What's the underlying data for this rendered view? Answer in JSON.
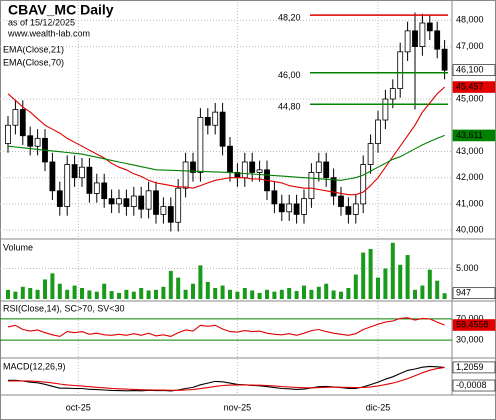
{
  "chart_data": [
    {
      "type": "candlestick",
      "title": "CBAV_MC Daily",
      "subtitle": "as of 15/12/2025",
      "source": "www.wealth-lab.com",
      "open": [
        43.3,
        44.0,
        44.6,
        43.6,
        43.2,
        43.5,
        42.6,
        41.5,
        40.9,
        42.5,
        42.0,
        42.4,
        41.4,
        41.8,
        41.2,
        41.0,
        41.2,
        40.9,
        41.3,
        40.8,
        41.5,
        40.6,
        40.9,
        40.3,
        41.6,
        42.6,
        42.2,
        44.3,
        44.0,
        44.5,
        43.2,
        42.2,
        42.0,
        42.6,
        42.2,
        42.3,
        41.5,
        41.0,
        40.7,
        41.0,
        40.6,
        41.2,
        42.2,
        42.6,
        42.0,
        41.3,
        40.9,
        40.6,
        41.0,
        42.5,
        43.3,
        44.2,
        45.0,
        45.4,
        46.8,
        47.6,
        47.0,
        47.9,
        47.6,
        46.9
      ],
      "high": [
        44.35,
        44.95,
        44.95,
        43.95,
        43.85,
        43.85,
        42.95,
        41.85,
        42.85,
        42.85,
        42.75,
        42.75,
        42.15,
        42.15,
        41.55,
        41.55,
        41.55,
        41.65,
        41.65,
        41.85,
        41.85,
        41.25,
        41.25,
        41.95,
        42.95,
        42.95,
        44.65,
        44.65,
        44.85,
        44.85,
        43.55,
        42.55,
        42.95,
        42.95,
        42.65,
        42.65,
        41.85,
        41.35,
        41.35,
        41.35,
        41.55,
        42.55,
        42.95,
        42.95,
        42.35,
        41.65,
        41.25,
        41.35,
        42.85,
        43.65,
        44.55,
        45.35,
        45.75,
        47.15,
        47.95,
        48.3,
        48.25,
        48.2,
        47.95,
        47.25
      ],
      "low": [
        42.95,
        43.65,
        43.25,
        42.85,
        42.85,
        42.25,
        41.15,
        40.55,
        40.55,
        41.65,
        41.65,
        41.05,
        41.05,
        40.85,
        40.65,
        40.65,
        40.55,
        40.55,
        40.45,
        40.45,
        40.25,
        40.25,
        39.95,
        39.95,
        41.25,
        41.85,
        41.85,
        43.65,
        43.65,
        42.85,
        41.85,
        41.65,
        41.65,
        41.85,
        41.85,
        41.15,
        40.65,
        40.35,
        40.35,
        40.25,
        40.25,
        40.85,
        41.85,
        41.65,
        40.95,
        40.55,
        40.25,
        40.25,
        40.65,
        42.15,
        42.95,
        43.85,
        44.65,
        45.05,
        46.45,
        44.6,
        46.65,
        47.25,
        46.55,
        45.75
      ],
      "close": [
        44.0,
        44.6,
        43.6,
        43.2,
        43.5,
        42.6,
        41.5,
        40.9,
        42.5,
        42.0,
        42.4,
        41.4,
        41.8,
        41.2,
        41.0,
        41.2,
        40.9,
        41.3,
        40.8,
        41.5,
        40.6,
        40.9,
        40.3,
        41.6,
        42.6,
        42.2,
        44.3,
        44.0,
        44.5,
        43.2,
        42.2,
        42.0,
        42.6,
        42.2,
        42.3,
        41.5,
        41.0,
        40.7,
        41.0,
        40.6,
        41.2,
        42.2,
        42.6,
        42.0,
        41.3,
        40.9,
        40.6,
        41.0,
        42.5,
        43.3,
        44.2,
        45.0,
        45.4,
        46.8,
        47.6,
        47.0,
        47.9,
        47.6,
        46.9,
        46.1
      ],
      "series": [
        {
          "name": "EMA(Close,21)",
          "color": "#e00000",
          "values": [
            45.2,
            44.95,
            44.7,
            44.5,
            44.25,
            44.0,
            43.85,
            43.7,
            43.5,
            43.35,
            43.2,
            43.05,
            42.9,
            42.75,
            42.55,
            42.4,
            42.3,
            42.15,
            42.05,
            41.9,
            41.8,
            41.75,
            41.7,
            41.65,
            41.65,
            41.6,
            41.7,
            41.8,
            41.9,
            41.95,
            42.0,
            42.0,
            42.0,
            41.95,
            41.95,
            41.9,
            41.85,
            41.8,
            41.7,
            41.65,
            41.6,
            41.6,
            41.55,
            41.5,
            41.45,
            41.4,
            41.35,
            41.35,
            41.45,
            41.7,
            42.0,
            42.4,
            42.8,
            43.2,
            43.6,
            44.0,
            44.5,
            44.85,
            45.2,
            45.457
          ]
        },
        {
          "name": "EMA(Close,70)",
          "color": "#008000",
          "values": [
            43.2,
            43.17,
            43.14,
            43.11,
            43.08,
            43.05,
            43.02,
            42.99,
            42.96,
            42.93,
            42.9,
            42.84,
            42.78,
            42.72,
            42.66,
            42.6,
            42.54,
            42.48,
            42.42,
            42.36,
            42.3,
            42.29,
            42.28,
            42.27,
            42.26,
            42.25,
            42.24,
            42.23,
            42.22,
            42.21,
            42.2,
            42.18,
            42.16,
            42.14,
            42.12,
            42.1,
            42.08,
            42.06,
            42.04,
            42.02,
            42.0,
            41.98,
            41.96,
            41.94,
            41.92,
            41.9,
            41.95,
            42.0,
            42.1,
            42.25,
            42.4,
            42.55,
            42.7,
            42.8,
            42.95,
            43.1,
            43.25,
            43.38,
            43.5,
            43.611
          ]
        }
      ],
      "levels": [
        {
          "value": 48.2,
          "label": "48,20",
          "color": "#e00000"
        },
        {
          "value": 46.0,
          "label": "46,00",
          "color": "#008000"
        },
        {
          "value": 44.8,
          "label": "44,80",
          "color": "#008000"
        }
      ],
      "ylim": [
        39.7,
        48.7
      ],
      "yticks": [
        {
          "value": 48,
          "label": "48,000"
        },
        {
          "value": 47,
          "label": "47,000"
        },
        {
          "value": 45,
          "label": "45,000"
        },
        {
          "value": 43,
          "label": "43,000"
        },
        {
          "value": 42,
          "label": "42,000"
        },
        {
          "value": 41,
          "label": "41,000"
        },
        {
          "value": 40,
          "label": "40,000"
        }
      ],
      "last_labels": [
        {
          "value": 46.1,
          "label": "46,100",
          "color": "#ffffff"
        },
        {
          "value": 45.457,
          "label": "45,457",
          "color": "#e00000"
        },
        {
          "value": 43.611,
          "label": "43,611",
          "color": "#008000"
        }
      ],
      "x_labels": [
        {
          "index": 9.5,
          "label": "oct-25"
        },
        {
          "index": 31,
          "label": "nov-25"
        },
        {
          "index": 50,
          "label": "dic-25"
        }
      ]
    },
    {
      "type": "bar",
      "title": "Volume",
      "color": "#1a9a1a",
      "values": [
        1500,
        1200,
        2000,
        1800,
        1500,
        3200,
        4200,
        2500,
        1500,
        2200,
        1800,
        1400,
        1200,
        2500,
        1300,
        1000,
        1500,
        1200,
        1800,
        1400,
        1500,
        2000,
        4600,
        3500,
        1500,
        2500,
        5500,
        2800,
        1800,
        2200,
        1500,
        1200,
        1800,
        1400,
        1000,
        1500,
        1200,
        1500,
        1800,
        1300,
        2200,
        1500,
        2000,
        2500,
        1400,
        1200,
        1800,
        4000,
        7600,
        8200,
        3500,
        5000,
        9200,
        5600,
        7200,
        1500,
        2200,
        4800,
        3000,
        947
      ],
      "ylim": [
        0,
        9500
      ],
      "yticks": [
        {
          "value": 5000,
          "label": "5.000"
        }
      ],
      "last_labels": [
        {
          "value": 947,
          "label": "947",
          "color": "#ffffff"
        }
      ]
    },
    {
      "type": "line",
      "title": "RSI(Close,14), SC>70, SV<30",
      "series": [
        {
          "color": "#e00000",
          "values": [
            55,
            58,
            50,
            47,
            49,
            44,
            40,
            37,
            46,
            44,
            46,
            41,
            43,
            40,
            39,
            41,
            39,
            42,
            39,
            43,
            38,
            40,
            37,
            44,
            49,
            47,
            58,
            56,
            58,
            51,
            46,
            45,
            48,
            46,
            47,
            43,
            41,
            40,
            42,
            39,
            43,
            48,
            50,
            46,
            43,
            41,
            39,
            42,
            50,
            55,
            60,
            64,
            66,
            71,
            72,
            68,
            71,
            70,
            64,
            58.4558
          ]
        }
      ],
      "ylim": [
        0,
        100
      ],
      "yticks": [
        {
          "value": 70,
          "label": "70,000"
        },
        {
          "value": 30,
          "label": "30,000"
        }
      ],
      "tick_color": "#008000",
      "last_labels": [
        {
          "value": 58.4558,
          "label": "58,4558",
          "color": "#e00000"
        }
      ]
    },
    {
      "type": "line",
      "title": "MACD(12,26,9)",
      "series": [
        {
          "color": "#000000",
          "values": [
            0.35,
            0.35,
            0.3,
            0.22,
            0.18,
            0.08,
            -0.05,
            -0.18,
            -0.18,
            -0.2,
            -0.2,
            -0.25,
            -0.27,
            -0.3,
            -0.33,
            -0.34,
            -0.35,
            -0.34,
            -0.35,
            -0.32,
            -0.34,
            -0.33,
            -0.36,
            -0.3,
            -0.2,
            -0.13,
            0.05,
            0.16,
            0.27,
            0.25,
            0.16,
            0.07,
            0.05,
            0.01,
            -0.02,
            -0.07,
            -0.14,
            -0.2,
            -0.22,
            -0.26,
            -0.24,
            -0.16,
            -0.08,
            -0.06,
            -0.09,
            -0.14,
            -0.19,
            -0.2,
            -0.09,
            0.06,
            0.23,
            0.42,
            0.58,
            0.8,
            1.01,
            1.1,
            1.22,
            1.27,
            1.25,
            1.2059
          ]
        },
        {
          "color": "#e00000",
          "values": [
            0.3,
            0.31,
            0.31,
            0.29,
            0.27,
            0.23,
            0.17,
            0.1,
            0.04,
            0,
            -0.04,
            -0.08,
            -0.12,
            -0.15,
            -0.19,
            -0.22,
            -0.24,
            -0.26,
            -0.28,
            -0.29,
            -0.3,
            -0.31,
            -0.32,
            -0.32,
            -0.3,
            -0.27,
            -0.21,
            -0.14,
            -0.06,
            0,
            0.03,
            0.04,
            0.04,
            0.03,
            0.02,
            0,
            -0.03,
            -0.07,
            -0.1,
            -0.13,
            -0.15,
            -0.15,
            -0.14,
            -0.12,
            -0.11,
            -0.12,
            -0.13,
            -0.14,
            -0.13,
            -0.09,
            -0.03,
            0.06,
            0.16,
            0.3,
            0.46,
            0.65,
            0.85,
            1.02,
            1.13,
            1.2067
          ]
        }
      ],
      "ylim": [
        -0.5,
        1.7
      ],
      "last_labels": [
        {
          "value": 1.2059,
          "label": "1,2059",
          "color": "#ffffff"
        },
        {
          "value": -0.0008,
          "label": "-0,0008",
          "color": "#ffffff"
        }
      ]
    }
  ]
}
